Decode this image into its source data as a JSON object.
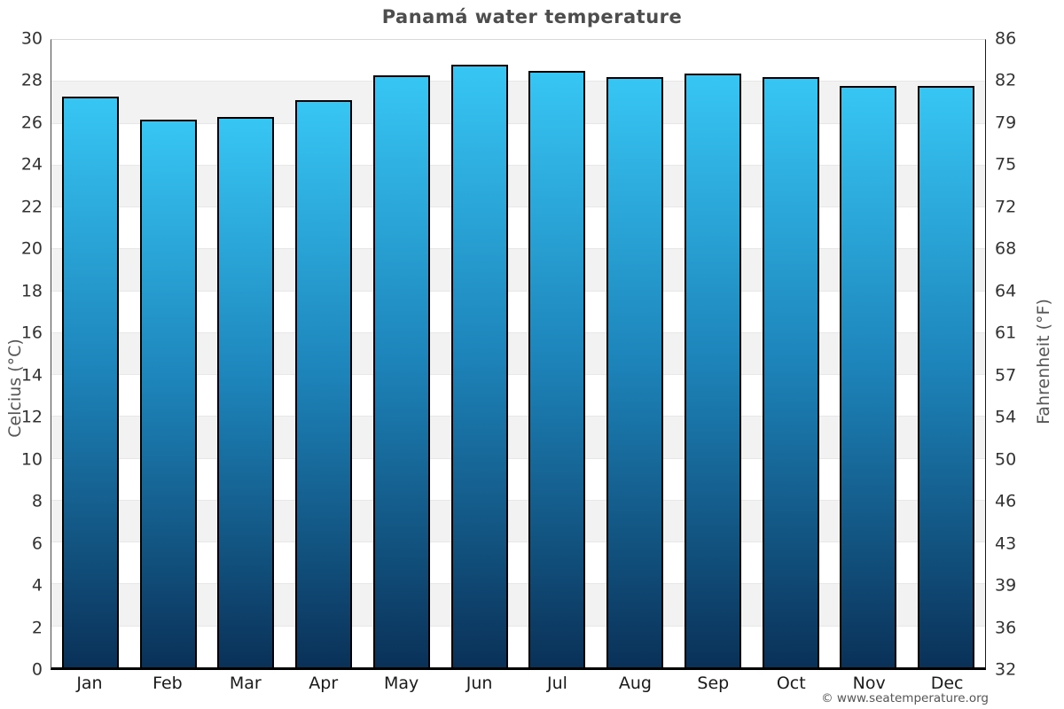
{
  "title": "Panamá water temperature",
  "footer": {
    "credit": "© www.seatemperature.org"
  },
  "axes": {
    "left_label": "Celcius (°C)",
    "right_label": "Fahrenheit (°F)"
  },
  "chart_data": {
    "type": "bar",
    "title": "Panamá water temperature",
    "categories": [
      "Jan",
      "Feb",
      "Mar",
      "Apr",
      "May",
      "Jun",
      "Jul",
      "Aug",
      "Sep",
      "Oct",
      "Nov",
      "Dec"
    ],
    "series": [
      {
        "name": "Water temperature (°C)",
        "values": [
          27.3,
          26.2,
          26.3,
          27.1,
          28.3,
          28.8,
          28.5,
          28.2,
          28.4,
          28.2,
          27.8,
          27.8
        ]
      }
    ],
    "xlabel": "",
    "ylabel_left": "Celcius (°C)",
    "ylabel_right": "Fahrenheit (°F)",
    "ylim": [
      0,
      30
    ],
    "yticks_celsius": [
      0,
      2,
      4,
      6,
      8,
      10,
      12,
      14,
      16,
      18,
      20,
      22,
      24,
      26,
      28,
      30
    ],
    "yticks_fahrenheit": [
      32,
      36,
      39,
      43,
      46,
      50,
      54,
      57,
      61,
      64,
      68,
      72,
      75,
      79,
      82,
      86
    ],
    "grid": "horizontal-bands-every-2C",
    "legend": false,
    "band_count": 15,
    "colors": {
      "bar_gradient_top": "#37c6f4",
      "bar_gradient_mid": "#1d84ba",
      "bar_gradient_bottom": "#0a3158",
      "bar_border": "#000000",
      "band_shade": "#f2f2f2",
      "grid_line": "#e7e7e7",
      "axis_line": "#000000",
      "title_color": "#4d4d4d",
      "tick_color": "#333333"
    }
  }
}
